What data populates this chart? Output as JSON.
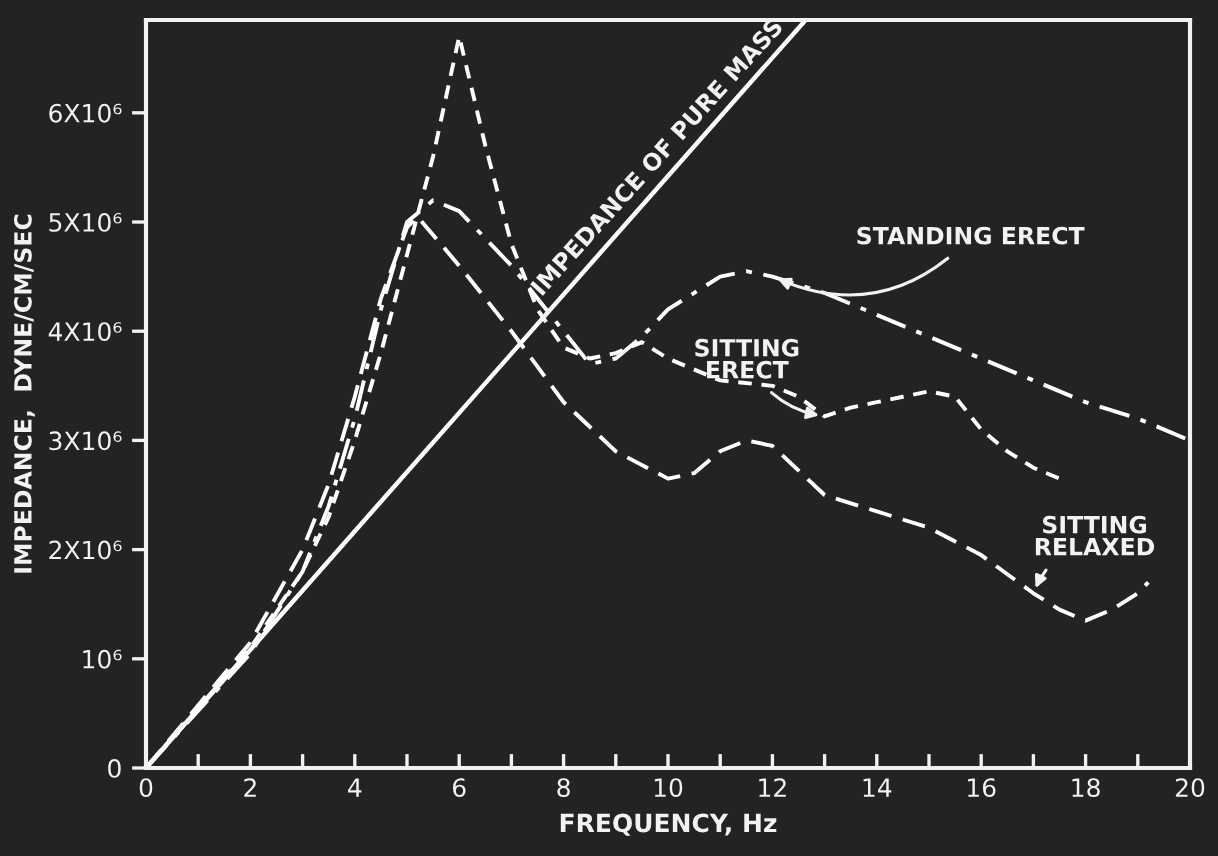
{
  "chart_data": {
    "type": "line",
    "xlabel": "FREQUENCY, Hz",
    "ylabel": "IMPEDANCE,  DYNE/CM/SEC",
    "xlim": [
      0,
      20
    ],
    "ylim": [
      0,
      6850000
    ],
    "xticks": [
      0,
      {
        "value": 1,
        "label": null
      },
      2,
      {
        "value": 3,
        "label": null
      },
      4,
      {
        "value": 5,
        "label": null
      },
      6,
      {
        "value": 7,
        "label": null
      },
      8,
      {
        "value": 9,
        "label": null
      },
      10,
      {
        "value": 11,
        "label": null
      },
      12,
      {
        "value": 13,
        "label": null
      },
      14,
      {
        "value": 15,
        "label": null
      },
      16,
      {
        "value": 17,
        "label": null
      },
      18,
      {
        "value": 19,
        "label": null
      },
      20
    ],
    "yticks": [
      0,
      {
        "value": 1000000,
        "label": "10⁶"
      },
      {
        "value": 2000000,
        "label": "2X10⁶"
      },
      {
        "value": 3000000,
        "label": "3X10⁶"
      },
      {
        "value": 4000000,
        "label": "4X10⁶"
      },
      {
        "value": 5000000,
        "label": "5X10⁶"
      },
      {
        "value": 6000000,
        "label": "6X10⁶"
      }
    ],
    "grid": false,
    "legend": false,
    "marker": "none",
    "series": [
      {
        "name": "IMPEDANCE OF PURE MASS",
        "color": "#ffffff",
        "line_style": "solid",
        "x": [
          0,
          12.6
        ],
        "values": [
          0,
          6830000
        ]
      },
      {
        "name": "SITTING ERECT",
        "color": "#ffffff",
        "line_style": "dashed",
        "x": [
          0,
          2,
          3,
          3.5,
          4,
          4.5,
          5,
          5.5,
          6,
          6.5,
          7,
          7.5,
          8,
          8.5,
          9,
          9.5,
          10,
          11,
          12,
          12.5,
          13,
          13.5,
          14,
          14.5,
          15,
          15.5,
          16,
          16.5,
          17,
          17.5
        ],
        "values": [
          0,
          1100000,
          1800000,
          2300000,
          3000000,
          3800000,
          4700000,
          5600000,
          6700000,
          5700000,
          4800000,
          4200000,
          3850000,
          3750000,
          3800000,
          3900000,
          3750000,
          3550000,
          3500000,
          3400000,
          3220000,
          3300000,
          3350000,
          3400000,
          3450000,
          3400000,
          3100000,
          2900000,
          2750000,
          2650000
        ]
      },
      {
        "name": "STANDING ERECT",
        "color": "#ffffff",
        "line_style": "dashdot",
        "x": [
          0,
          2,
          3,
          3.5,
          4,
          4.5,
          5,
          5.5,
          6,
          7,
          8,
          8.5,
          9,
          9.5,
          10,
          11,
          11.5,
          12,
          13,
          14,
          15,
          16,
          17,
          18,
          19,
          20
        ],
        "values": [
          0,
          1050000,
          1800000,
          2400000,
          3200000,
          4200000,
          5000000,
          5200000,
          5100000,
          4600000,
          4000000,
          3700000,
          3750000,
          3950000,
          4200000,
          4500000,
          4550000,
          4500000,
          4350000,
          4150000,
          3950000,
          3750000,
          3550000,
          3350000,
          3200000,
          3000000
        ]
      },
      {
        "name": "SITTING RELAXED",
        "color": "#ffffff",
        "line_style": "dashed",
        "x": [
          0,
          2,
          3,
          3.5,
          4,
          4.5,
          5,
          5.2,
          6,
          7,
          8,
          9,
          10,
          10.5,
          11,
          11.5,
          12,
          13,
          14,
          15,
          16,
          17,
          17.5,
          18,
          18.5,
          19,
          19.2
        ],
        "values": [
          0,
          1150000,
          2000000,
          2600000,
          3400000,
          4300000,
          4950000,
          5050000,
          4600000,
          4000000,
          3350000,
          2900000,
          2650000,
          2700000,
          2900000,
          3000000,
          2950000,
          2500000,
          2350000,
          2200000,
          1950000,
          1600000,
          1450000,
          1350000,
          1450000,
          1600000,
          1700000
        ]
      }
    ]
  }
}
